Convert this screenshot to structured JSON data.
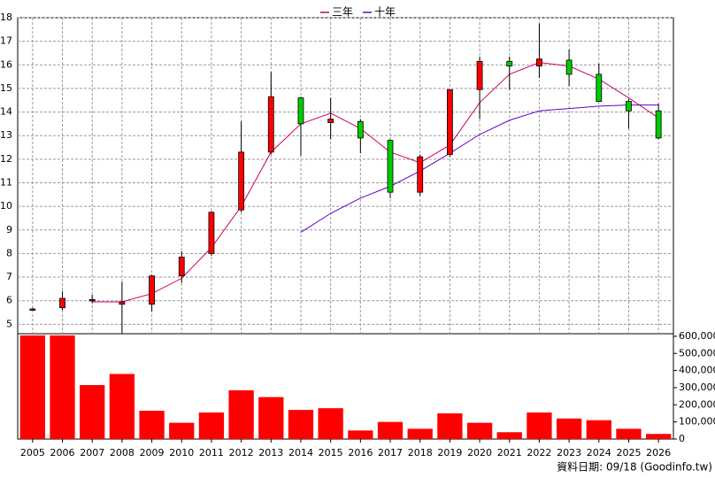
{
  "chart_data": {
    "type": "candlestick",
    "categories": [
      "2005",
      "2006",
      "2007",
      "2008",
      "2009",
      "2010",
      "2011",
      "2012",
      "2013",
      "2014",
      "2015",
      "2016",
      "2017",
      "2018",
      "2019",
      "2020",
      "2021",
      "2022",
      "2023",
      "2024",
      "2025",
      "2026"
    ],
    "open": [
      5.65,
      5.7,
      6.0,
      5.85,
      5.85,
      7.05,
      8.0,
      9.85,
      12.3,
      14.6,
      13.55,
      13.6,
      12.8,
      10.6,
      12.2,
      14.95,
      16.15,
      15.95,
      16.2,
      15.6,
      14.45,
      14.05
    ],
    "high": [
      5.7,
      6.4,
      6.25,
      6.8,
      7.1,
      8.1,
      9.8,
      13.6,
      15.7,
      14.65,
      14.6,
      13.7,
      12.85,
      12.2,
      14.95,
      16.35,
      16.35,
      17.75,
      16.65,
      16.05,
      14.55,
      14.35
    ],
    "low": [
      5.6,
      5.6,
      5.9,
      4.6,
      5.55,
      6.75,
      7.9,
      9.75,
      12.2,
      12.15,
      12.85,
      12.25,
      10.35,
      10.45,
      12.1,
      13.7,
      14.95,
      15.45,
      15.1,
      14.45,
      13.3,
      12.85
    ],
    "close": [
      5.65,
      6.1,
      6.05,
      5.95,
      7.05,
      7.85,
      9.75,
      12.3,
      14.65,
      13.5,
      13.7,
      12.9,
      10.6,
      12.1,
      14.95,
      16.15,
      15.95,
      16.25,
      15.6,
      14.45,
      14.05,
      12.9
    ],
    "up_color": "#ff0000",
    "down_color": "#00cc00",
    "series": [
      {
        "name": "三年",
        "color": "#cc0066",
        "values": [
          null,
          null,
          5.95,
          5.95,
          6.3,
          6.95,
          8.25,
          10.0,
          12.3,
          13.5,
          13.95,
          13.3,
          12.3,
          11.85,
          12.6,
          14.4,
          15.6,
          16.1,
          15.95,
          15.4,
          14.6,
          13.75
        ]
      },
      {
        "name": "十年",
        "color": "#6600cc",
        "values": [
          null,
          null,
          null,
          null,
          null,
          null,
          null,
          null,
          null,
          8.9,
          9.7,
          10.35,
          10.85,
          11.5,
          12.25,
          13.05,
          13.65,
          14.05,
          14.15,
          14.25,
          14.3,
          14.3
        ]
      }
    ],
    "ylim": [
      4.6,
      18
    ],
    "yticks": [
      5,
      6,
      7,
      8,
      9,
      10,
      11,
      12,
      13,
      14,
      15,
      16,
      17,
      18
    ],
    "grid": true,
    "volume": {
      "type": "bar",
      "color": "#ff0000",
      "values": [
        605000,
        605000,
        315000,
        380000,
        165000,
        95000,
        155000,
        285000,
        245000,
        170000,
        180000,
        50000,
        100000,
        60000,
        150000,
        95000,
        40000,
        155000,
        120000,
        110000,
        60000,
        30000
      ],
      "ylim": [
        0,
        615000
      ],
      "yticks": [
        0,
        {
          "value": 100000,
          "label": "100,000"
        },
        {
          "value": 200000,
          "label": "200,000"
        },
        {
          "value": 300000,
          "label": "300,000"
        },
        {
          "value": 400000,
          "label": "400,000"
        },
        {
          "value": 500000,
          "label": "500,000"
        },
        {
          "value": 600000,
          "label": "600,000"
        }
      ]
    },
    "source": "資料日期: 09/18 (Goodinfo.tw)"
  }
}
